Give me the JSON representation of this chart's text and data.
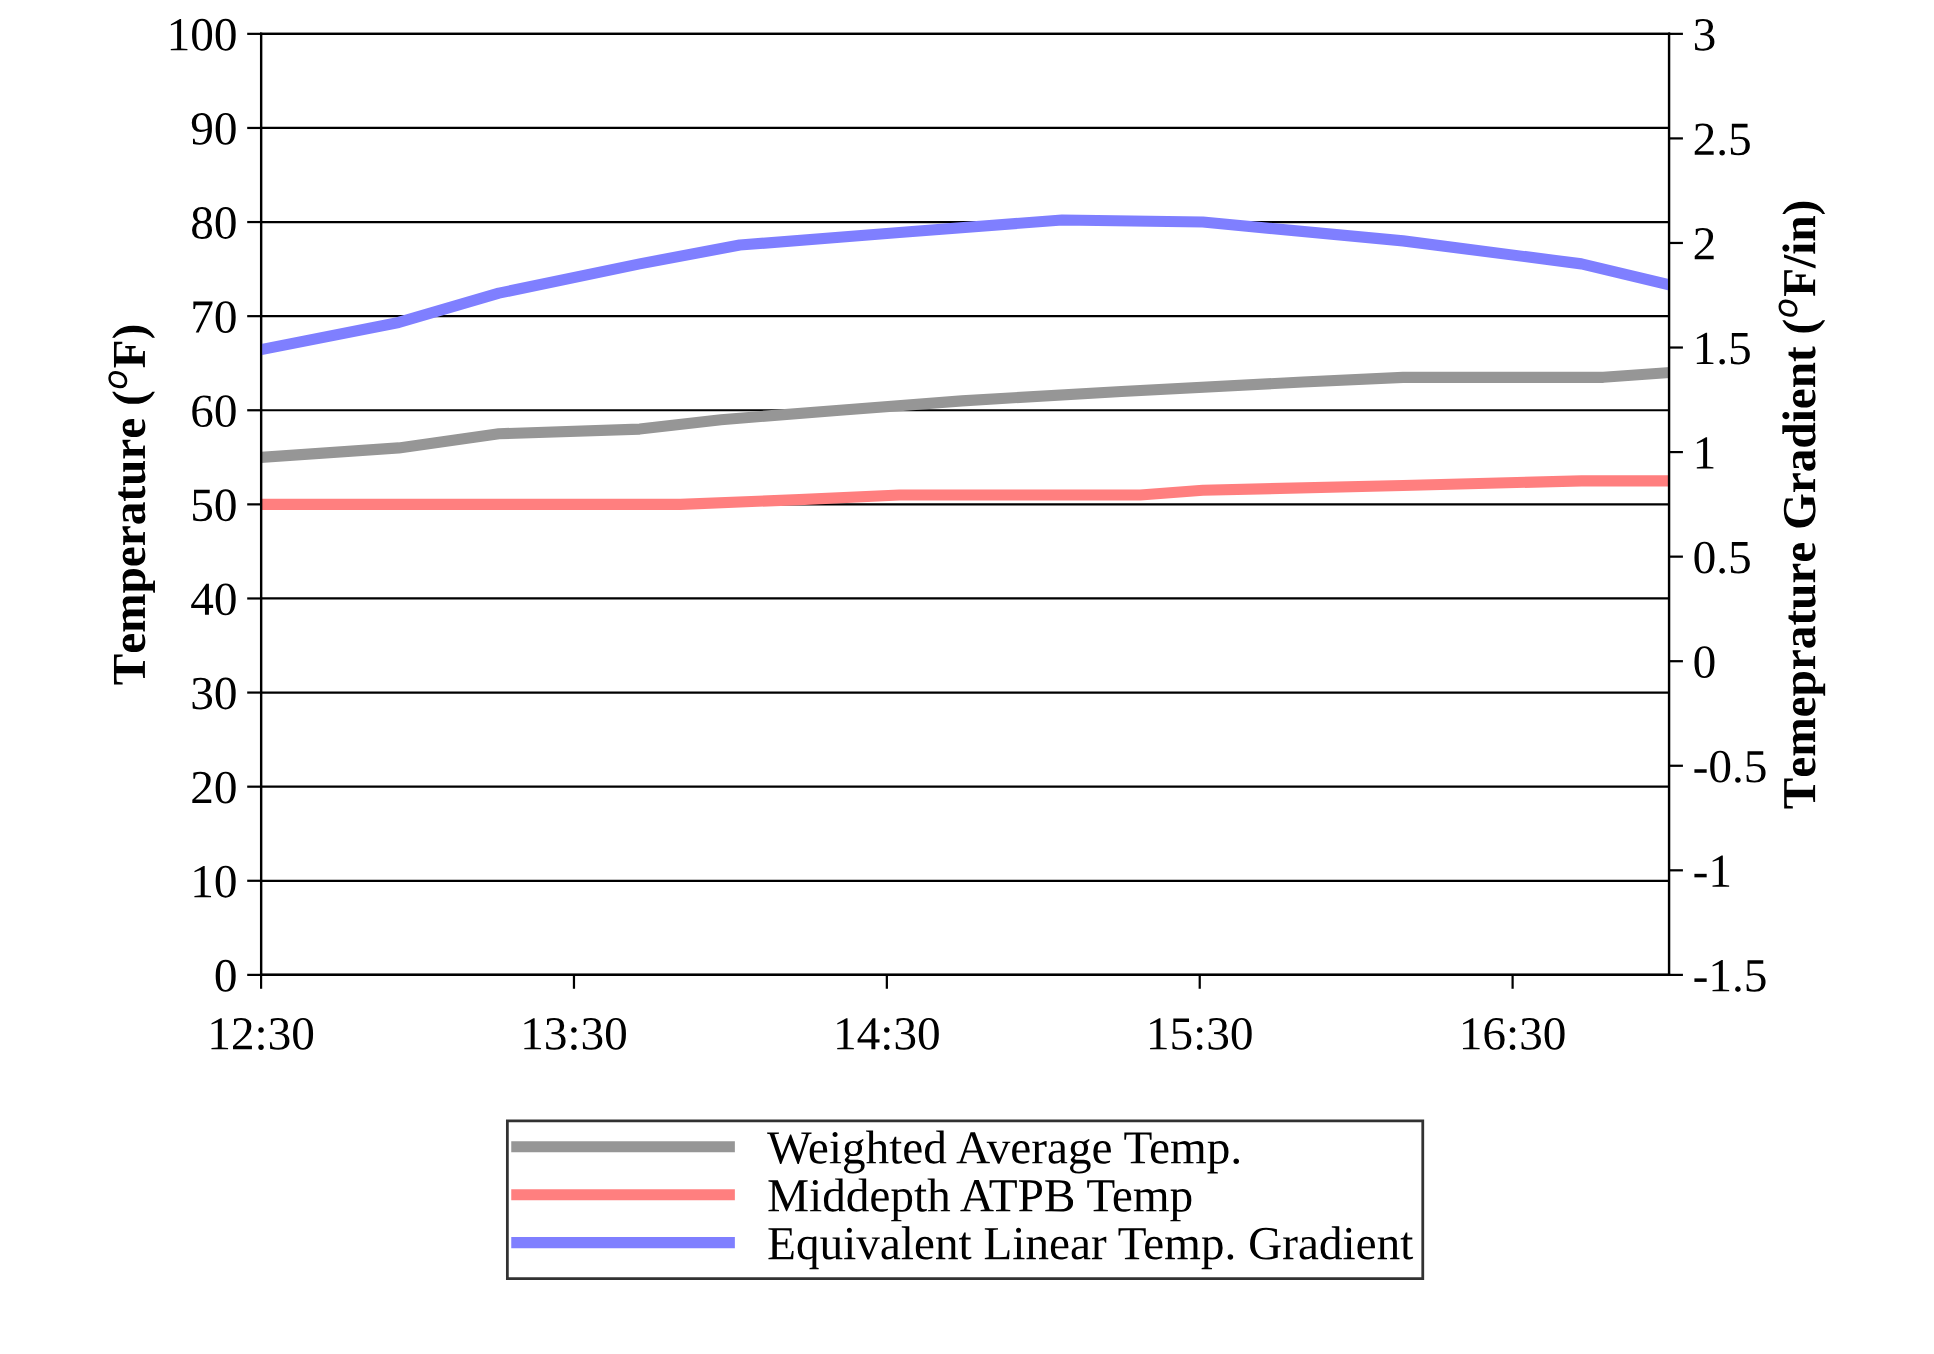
{
  "chart_data": {
    "type": "line",
    "ylabel": "Temperature ($^{o}$F)",
    "y2label": "Temeprature Gradient ($^{o}$F/in)",
    "xlim": [
      12.5,
      17.0
    ],
    "xticks": [
      {
        "value": 12.5,
        "label": "12:30"
      },
      {
        "value": 13.5,
        "label": "13:30"
      },
      {
        "value": 14.5,
        "label": "14:30"
      },
      {
        "value": 15.5,
        "label": "15:30"
      },
      {
        "value": 16.5,
        "label": "16:30"
      }
    ],
    "ylim": [
      0,
      100
    ],
    "yticks": [
      0,
      10,
      20,
      30,
      40,
      50,
      60,
      70,
      80,
      90,
      100
    ],
    "y2lim": [
      -1.5,
      3
    ],
    "y2ticks": [
      -1.5,
      -1,
      -0.5,
      0,
      0.5,
      1,
      1.5,
      2,
      2.5,
      3
    ],
    "grid": "y",
    "legend": "bottom",
    "marker": "none",
    "line_style": "solid",
    "series": [
      {
        "name": "Weighted Average Temp.",
        "color": "#969696",
        "x": [
          12.5,
          12.94,
          13.26,
          13.71,
          13.97,
          14.35,
          14.74,
          15.25,
          15.83,
          16.15,
          16.79,
          17.0
        ],
        "values": [
          55,
          56,
          57.5,
          58,
          59,
          60,
          61,
          62,
          63,
          63.5,
          63.5,
          64
        ]
      },
      {
        "name": "Middepth ATPB Temp",
        "color": "#ff7f7f",
        "x": [
          12.5,
          13.84,
          14.22,
          14.54,
          15.31,
          15.51,
          16.15,
          16.72,
          17.0
        ],
        "values": [
          50,
          50,
          50.5,
          51,
          51,
          51.5,
          52,
          52.5,
          52.5
        ]
      },
      {
        "name": "Equivalent Linear Temp. Gradient",
        "color": "#7f7fff",
        "axis": "y2",
        "x": [
          12.5,
          12.94,
          13.26,
          13.71,
          14.03,
          14.54,
          15.06,
          15.51,
          16.15,
          16.72,
          17.0
        ],
        "values": [
          1.49,
          1.62,
          1.76,
          1.9,
          1.99,
          2.05,
          2.11,
          2.1,
          2.01,
          1.9,
          1.8
        ]
      }
    ]
  }
}
